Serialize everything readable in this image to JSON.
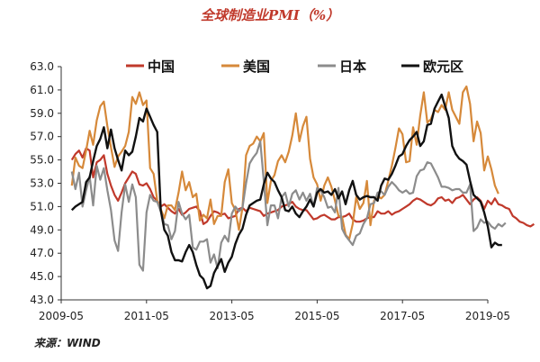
{
  "chart_data": {
    "type": "line",
    "title": "全球制造业PMI（%）",
    "source": "来源：WIND",
    "xlabel": "",
    "ylabel": "",
    "ylim": [
      43.0,
      63.0
    ],
    "yticks": [
      "43.0",
      "45.0",
      "47.0",
      "49.0",
      "51.0",
      "53.0",
      "55.0",
      "57.0",
      "59.0",
      "61.0",
      "63.0"
    ],
    "xticks": [
      "2009-05",
      "2011-05",
      "2013-05",
      "2015-05",
      "2017-05",
      "2019-05"
    ],
    "x_unit": "month",
    "x_start": "2009-08",
    "legend_position": "top",
    "grid": false,
    "series": [
      {
        "name": "中国",
        "color": "#c0392b",
        "values": [
          55.0,
          55.5,
          55.8,
          55.2,
          56.0,
          55.8,
          53.5,
          54.8,
          55.0,
          55.4,
          53.8,
          52.8,
          52.0,
          51.5,
          52.2,
          53.0,
          53.5,
          54.0,
          53.8,
          52.9,
          52.8,
          53.0,
          52.5,
          51.8,
          51.5,
          51.0,
          51.2,
          50.9,
          50.6,
          50.4,
          50.8,
          50.3,
          50.5,
          50.8,
          50.9,
          51.0,
          50.6,
          49.5,
          49.7,
          50.2,
          50.6,
          50.5,
          50.3,
          50.4,
          50.0,
          50.1,
          50.2,
          50.8,
          50.9,
          50.6,
          50.9,
          50.8,
          50.7,
          50.6,
          50.2,
          50.4,
          50.5,
          50.6,
          50.7,
          51.0,
          51.1,
          51.2,
          51.4,
          51.0,
          50.8,
          50.7,
          50.7,
          50.3,
          49.9,
          50.0,
          50.2,
          50.3,
          50.1,
          49.9,
          49.9,
          50.1,
          50.1,
          50.2,
          50.4,
          49.9,
          49.7,
          49.7,
          49.8,
          50.0,
          50.1,
          50.1,
          50.6,
          50.4,
          50.4,
          50.6,
          50.3,
          50.5,
          50.6,
          50.8,
          51.0,
          51.2,
          51.5,
          51.7,
          51.6,
          51.4,
          51.2,
          51.1,
          51.3,
          51.7,
          51.8,
          51.5,
          51.6,
          51.3,
          51.7,
          51.8,
          52.0,
          51.6,
          51.2,
          51.6,
          51.8,
          51.5,
          50.8,
          51.5,
          51.2,
          51.7,
          51.2,
          51.1,
          50.9,
          50.8,
          50.2,
          50.0,
          49.7,
          49.6,
          49.4,
          49.3,
          49.5
        ]
      },
      {
        "name": "美国",
        "color": "#d6893a",
        "values": [
          52.8,
          55.2,
          54.5,
          54.3,
          55.8,
          57.5,
          56.3,
          58.4,
          59.6,
          60.0,
          57.9,
          56.1,
          54.4,
          55.3,
          55.7,
          56.2,
          57.4,
          60.4,
          59.8,
          60.8,
          59.7,
          60.1,
          54.3,
          53.8,
          51.5,
          50.8,
          50.0,
          51.1,
          51.1,
          50.7,
          52.2,
          54.0,
          52.4,
          53.1,
          51.8,
          52.1,
          49.8,
          50.3,
          50.0,
          51.6,
          49.5,
          50.2,
          50.2,
          53.1,
          54.2,
          51.3,
          50.7,
          49.0,
          50.9,
          55.4,
          56.2,
          56.4,
          57.0,
          56.6,
          57.3,
          51.3,
          53.2,
          53.7,
          54.9,
          55.4,
          54.8,
          55.7,
          57.1,
          59.0,
          56.6,
          57.9,
          58.7,
          55.1,
          53.5,
          52.9,
          51.5,
          52.8,
          53.5,
          52.7,
          51.5,
          50.2,
          50.1,
          48.6,
          48.2,
          49.5,
          51.8,
          50.8,
          51.3,
          53.2,
          49.4,
          51.5,
          51.9,
          51.7,
          52.0,
          53.2,
          54.5,
          56.0,
          57.7,
          57.2,
          54.8,
          54.9,
          57.8,
          56.3,
          58.8,
          60.8,
          58.2,
          58.5,
          59.3,
          59.1,
          59.7,
          59.3,
          60.8,
          59.3,
          58.7,
          58.1,
          60.8,
          61.3,
          59.8,
          56.6,
          58.3,
          57.3,
          54.1,
          55.3,
          54.2,
          52.8,
          52.1
        ]
      },
      {
        "name": "日本",
        "color": "#8c8c8c",
        "values": [
          54.0,
          52.5,
          53.9,
          51.0,
          52.4,
          53.6,
          51.1,
          54.5,
          53.3,
          54.3,
          52.4,
          50.7,
          48.1,
          47.2,
          50.5,
          52.9,
          51.4,
          52.9,
          51.8,
          46.0,
          45.5,
          50.5,
          52.0,
          51.5,
          51.4,
          50.6,
          49.5,
          49.4,
          48.2,
          48.9,
          51.4,
          50.4,
          49.9,
          50.3,
          47.5,
          47.3,
          48.0,
          48.0,
          48.2,
          46.2,
          46.9,
          45.7,
          47.9,
          48.5,
          48.0,
          50.4,
          51.0,
          50.6,
          50.9,
          53.0,
          54.7,
          55.2,
          55.6,
          56.6,
          53.2,
          49.4,
          51.1,
          51.1,
          50.0,
          51.8,
          52.2,
          51.0,
          52.1,
          52.4,
          51.6,
          52.2,
          51.5,
          52.1,
          51.0,
          52.6,
          52.4,
          51.8,
          50.9,
          51.0,
          50.5,
          52.6,
          49.1,
          48.5,
          48.1,
          47.7,
          48.5,
          48.7,
          49.5,
          50.0,
          51.2,
          51.3,
          52.2,
          52.3,
          52.0,
          52.7,
          53.1,
          52.8,
          52.4,
          52.2,
          52.4,
          52.1,
          52.2,
          53.6,
          54.1,
          54.2,
          54.8,
          54.7,
          54.1,
          53.5,
          52.7,
          52.7,
          52.6,
          52.4,
          52.5,
          52.5,
          52.2,
          52.2,
          52.9,
          48.9,
          49.2,
          49.9,
          49.6,
          49.7,
          49.3,
          49.1,
          49.5,
          49.3,
          49.6
        ]
      },
      {
        "name": "欧元区",
        "color": "#111111",
        "values": [
          50.7,
          51.0,
          51.2,
          51.4,
          53.1,
          53.5,
          54.9,
          56.2,
          56.8,
          57.8,
          56.0,
          57.6,
          56.0,
          55.0,
          54.1,
          55.8,
          55.4,
          55.7,
          57.0,
          58.6,
          58.3,
          59.4,
          58.7,
          58.0,
          57.4,
          50.7,
          49.0,
          48.5,
          47.1,
          46.4,
          46.4,
          46.3,
          47.1,
          47.7,
          47.1,
          46.0,
          45.1,
          44.8,
          44.0,
          44.2,
          45.3,
          45.9,
          46.5,
          45.4,
          46.2,
          46.7,
          47.8,
          48.6,
          49.1,
          50.3,
          51.1,
          51.3,
          51.5,
          51.6,
          52.9,
          53.9,
          53.4,
          53.1,
          52.4,
          51.8,
          50.7,
          50.6,
          51.0,
          50.4,
          50.1,
          50.6,
          51.0,
          51.6,
          51.0,
          52.2,
          52.5,
          52.2,
          52.3,
          52.0,
          52.5,
          51.7,
          52.3,
          51.2,
          52.4,
          53.2,
          52.0,
          51.6,
          51.8,
          51.9,
          51.8,
          51.8,
          51.5,
          52.8,
          53.4,
          53.3,
          53.8,
          54.5,
          55.3,
          55.5,
          56.2,
          56.7,
          57.0,
          57.4,
          56.2,
          56.6,
          58.0,
          58.1,
          59.4,
          60.0,
          60.6,
          59.6,
          58.6,
          56.2,
          55.5,
          55.1,
          54.9,
          54.6,
          53.2,
          52.0,
          51.7,
          51.4,
          50.5,
          49.3,
          47.5,
          47.9,
          47.7,
          47.7
        ]
      }
    ]
  }
}
